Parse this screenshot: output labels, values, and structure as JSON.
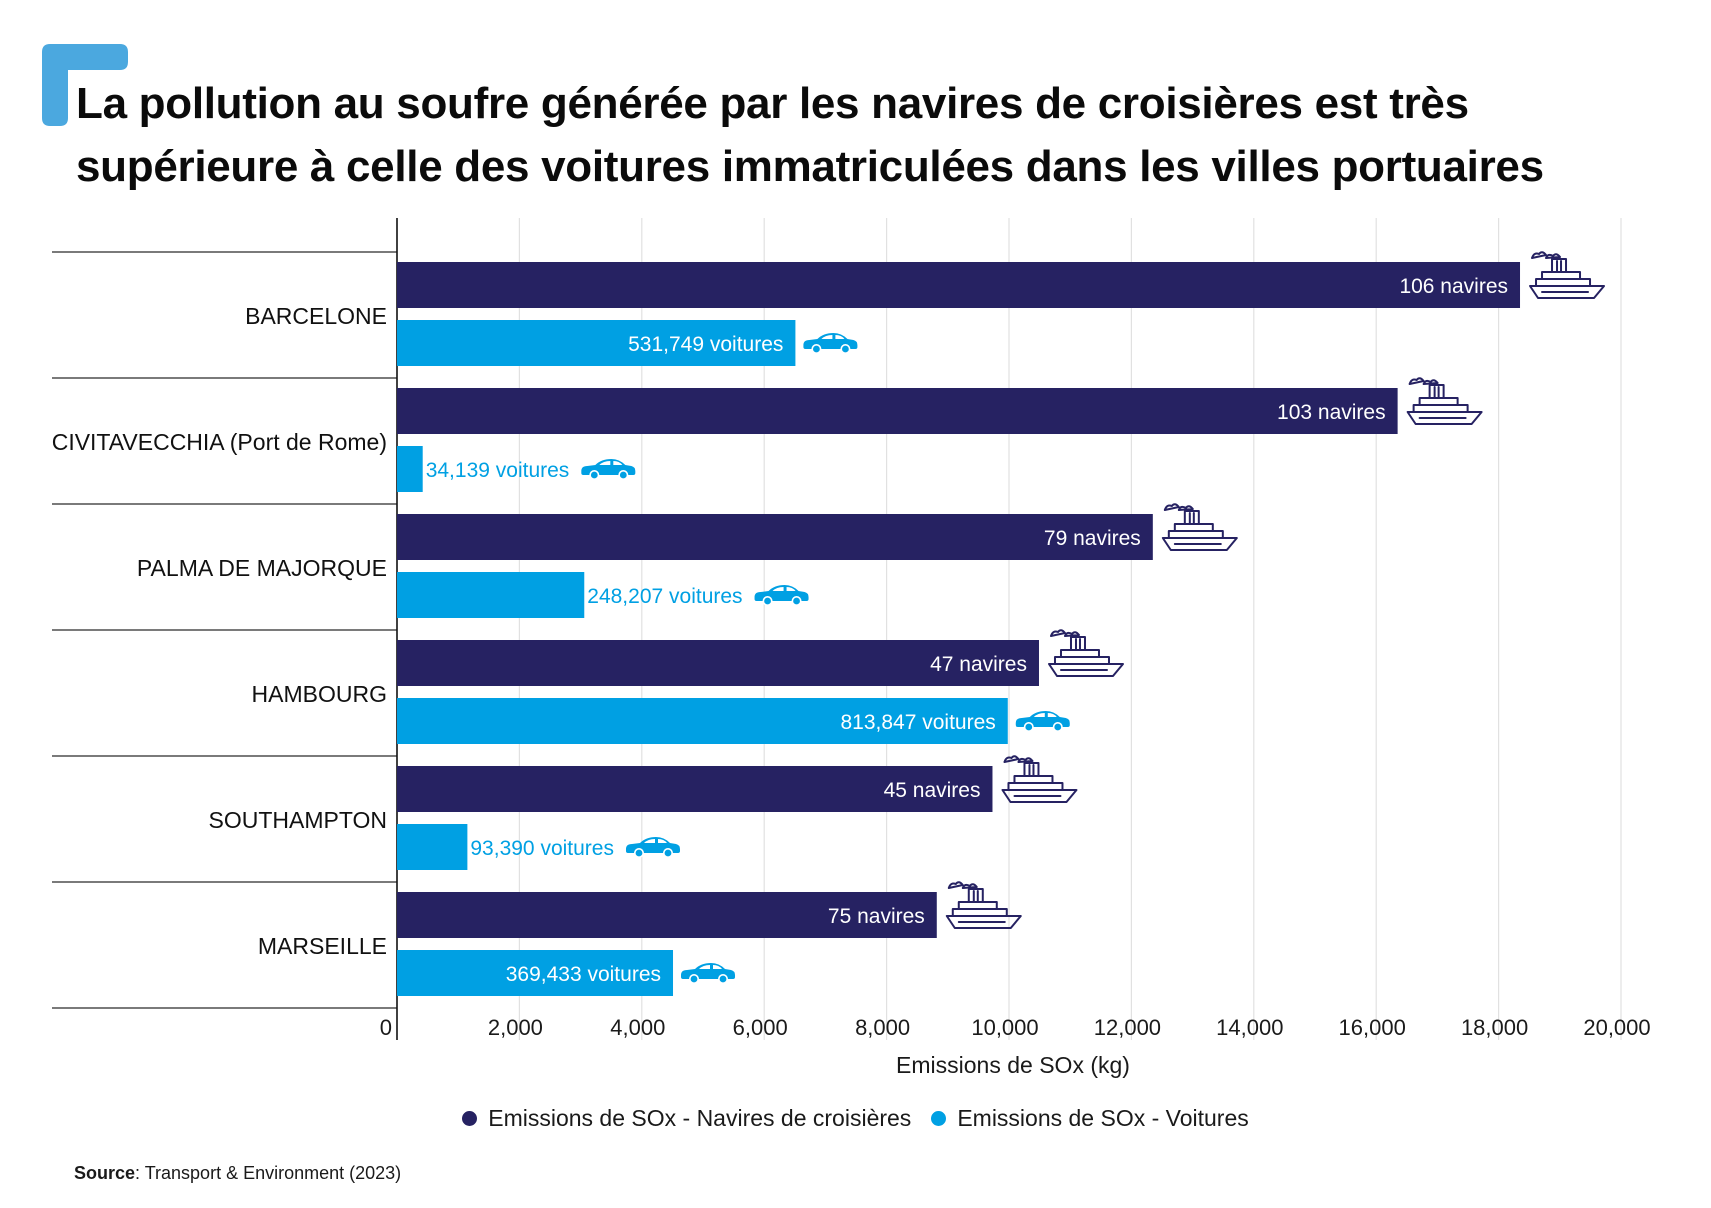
{
  "title_line1": "La pollution au soufre générée par les navires de croisières est très",
  "title_line2": "supérieure à celle des voitures immatriculées dans les villes portuaires",
  "colors": {
    "ships": "#262262",
    "cars": "#00a0e3",
    "accent": "#4ba8df",
    "grid": "#e1e1e1"
  },
  "chart_data": {
    "type": "bar",
    "orientation": "horizontal",
    "categories": [
      "BARCELONE",
      "CIVITAVECCHIA (Port de Rome)",
      "PALMA DE MAJORQUE",
      "HAMBOURG",
      "SOUTHAMPTON",
      "MARSEILLE"
    ],
    "series": [
      {
        "name": "Emissions de SOx - Navires de croisières",
        "icon": "ship-icon",
        "values": [
          18350,
          16350,
          12350,
          10490,
          9730,
          8820
        ],
        "labels": [
          "106 navires",
          "103 navires",
          "79 navires",
          "47 navires",
          "45 navires",
          "75 navires"
        ]
      },
      {
        "name": "Emissions de SOx - Voitures",
        "icon": "car-icon",
        "values": [
          6510,
          420,
          3060,
          9980,
          1150,
          4510
        ],
        "labels": [
          "531,749 voitures",
          "34,139 voitures",
          "248,207 voitures",
          "813,847 voitures",
          "93,390 voitures",
          "369,433 voitures"
        ]
      }
    ],
    "xlabel": "Emissions de SOx (kg)",
    "xlim": [
      0,
      20000
    ],
    "xticks": [
      0,
      2000,
      4000,
      6000,
      8000,
      10000,
      12000,
      14000,
      16000,
      18000,
      20000
    ],
    "xtick_labels": [
      "0",
      "2,000",
      "4,000",
      "6,000",
      "8,000",
      "10,000",
      "12,000",
      "14,000",
      "16,000",
      "18,000",
      "20,000"
    ],
    "grid": "vertical",
    "legend_position": "bottom"
  },
  "source": {
    "label": "Source",
    "text": ": Transport & Environment (2023)"
  }
}
